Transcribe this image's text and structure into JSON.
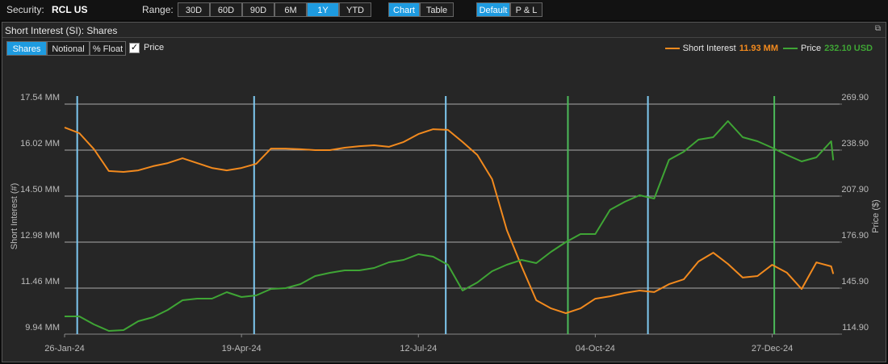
{
  "toolbar": {
    "security_label": "Security:",
    "security": "RCL US",
    "range_label": "Range:",
    "ranges": [
      "30D",
      "60D",
      "90D",
      "6M",
      "1Y",
      "YTD"
    ],
    "active_range": "1Y",
    "views": [
      "Chart",
      "Table"
    ],
    "active_view": "Chart",
    "modes": [
      "Default",
      "P & L"
    ],
    "active_mode": "Default"
  },
  "panel": {
    "title": "Short Interest (SI): Shares",
    "measures": [
      "Shares",
      "Notional",
      "% Float"
    ],
    "active_measure": "Shares",
    "price_checkbox": "Price",
    "price_checked": true
  },
  "chart_data": {
    "type": "line",
    "x": [
      "2024-01-26",
      "2024-02-02",
      "2024-02-09",
      "2024-02-16",
      "2024-02-23",
      "2024-03-01",
      "2024-03-08",
      "2024-03-15",
      "2024-03-22",
      "2024-03-29",
      "2024-04-05",
      "2024-04-12",
      "2024-04-19",
      "2024-04-26",
      "2024-05-03",
      "2024-05-10",
      "2024-05-17",
      "2024-05-24",
      "2024-05-31",
      "2024-06-07",
      "2024-06-14",
      "2024-06-21",
      "2024-06-28",
      "2024-07-05",
      "2024-07-12",
      "2024-07-19",
      "2024-07-26",
      "2024-08-02",
      "2024-08-09",
      "2024-08-16",
      "2024-08-23",
      "2024-08-30",
      "2024-09-06",
      "2024-09-13",
      "2024-09-20",
      "2024-09-27",
      "2024-10-04",
      "2024-10-11",
      "2024-10-18",
      "2024-10-25",
      "2024-11-01",
      "2024-11-08",
      "2024-11-15",
      "2024-11-22",
      "2024-11-29",
      "2024-12-06",
      "2024-12-13",
      "2024-12-20",
      "2024-12-27",
      "2025-01-03",
      "2025-01-10",
      "2025-01-17",
      "2025-01-24",
      "2025-01-25"
    ],
    "series": [
      {
        "name": "Short Interest",
        "color": "#f28a1e",
        "legend_value": "11.93 MM",
        "values": [
          16.77,
          16.58,
          16.05,
          15.33,
          15.3,
          15.35,
          15.49,
          15.59,
          15.75,
          15.59,
          15.43,
          15.35,
          15.43,
          15.57,
          16.07,
          16.07,
          16.05,
          16.02,
          16.02,
          16.1,
          16.15,
          16.18,
          16.13,
          16.29,
          16.55,
          16.71,
          16.69,
          16.29,
          15.86,
          15.06,
          13.38,
          12.18,
          11.06,
          10.79,
          10.63,
          10.79,
          11.11,
          11.19,
          11.3,
          11.38,
          11.33,
          11.59,
          11.75,
          12.34,
          12.63,
          12.26,
          11.81,
          11.86,
          12.23,
          11.97,
          11.43,
          12.31,
          12.18,
          11.93
        ]
      },
      {
        "name": "Price",
        "color": "#3fa535",
        "axis": "y2",
        "legend_value": "232.10 USD",
        "values": [
          126.87,
          126.87,
          121.43,
          117.08,
          117.62,
          123.6,
          126.32,
          131.22,
          137.74,
          138.83,
          138.83,
          143.18,
          139.92,
          141.01,
          145.36,
          145.9,
          148.62,
          154.06,
          156.24,
          157.87,
          157.87,
          159.5,
          163.31,
          164.94,
          168.75,
          167.11,
          161.68,
          144.27,
          149.71,
          157.32,
          161.68,
          164.94,
          162.76,
          170.38,
          176.9,
          182.34,
          182.34,
          198.66,
          204.1,
          208.45,
          206.28,
          232.38,
          237.82,
          245.98,
          247.61,
          258.49,
          247.61,
          244.89,
          240.54,
          235.65,
          231.29,
          234.01,
          244.89,
          232.1
        ]
      }
    ],
    "ylabel": "Short Interest (#)",
    "y2label": "Price ($)",
    "ylim": [
      9.94,
      17.54
    ],
    "yticks": [
      {
        "value": 17.54,
        "label": "17.54 MM"
      },
      {
        "value": 16.02,
        "label": "16.02 MM"
      },
      {
        "value": 14.5,
        "label": "14.50 MM"
      },
      {
        "value": 12.98,
        "label": "12.98 MM"
      },
      {
        "value": 11.46,
        "label": "11.46 MM"
      },
      {
        "value": 9.94,
        "label": "9.94 MM"
      }
    ],
    "y2lim": [
      114.9,
      269.9
    ],
    "y2ticks": [
      {
        "value": 269.9,
        "label": "269.90"
      },
      {
        "value": 238.9,
        "label": "238.90"
      },
      {
        "value": 207.9,
        "label": "207.90"
      },
      {
        "value": 176.9,
        "label": "176.90"
      },
      {
        "value": 145.9,
        "label": "145.90"
      },
      {
        "value": 114.9,
        "label": "114.90"
      }
    ],
    "xlim": [
      "2024-01-26",
      "2025-01-28"
    ],
    "xticks": [
      {
        "value": "2024-01-26",
        "label": "26-Jan-24"
      },
      {
        "value": "2024-04-19",
        "label": "19-Apr-24"
      },
      {
        "value": "2024-07-12",
        "label": "12-Jul-24"
      },
      {
        "value": "2024-10-04",
        "label": "04-Oct-24"
      },
      {
        "value": "2024-12-27",
        "label": "27-Dec-24"
      }
    ],
    "grid": true,
    "event_lines": [
      {
        "x": "2024-02-01",
        "color": "#7ec8f0"
      },
      {
        "x": "2024-04-25",
        "color": "#7ec8f0"
      },
      {
        "x": "2024-07-25",
        "color": "#7ec8f0"
      },
      {
        "x": "2024-10-29",
        "color": "#7ec8f0"
      },
      {
        "x": "2024-09-21",
        "color": "#4cbb5a"
      },
      {
        "x": "2024-12-28",
        "color": "#4cbb5a"
      }
    ]
  }
}
